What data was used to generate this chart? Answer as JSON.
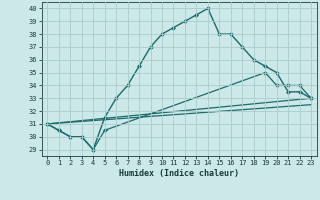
{
  "xlabel": "Humidex (Indice chaleur)",
  "background_color": "#cce8e8",
  "grid_color": "#aacccc",
  "line_color": "#1a6b6b",
  "xlim": [
    -0.5,
    23.5
  ],
  "ylim": [
    28.5,
    40.5
  ],
  "xticks": [
    0,
    1,
    2,
    3,
    4,
    5,
    6,
    7,
    8,
    9,
    10,
    11,
    12,
    13,
    14,
    15,
    16,
    17,
    18,
    19,
    20,
    21,
    22,
    23
  ],
  "yticks": [
    29,
    30,
    31,
    32,
    33,
    34,
    35,
    36,
    37,
    38,
    39,
    40
  ],
  "series": [
    {
      "x": [
        0,
        1,
        2,
        3,
        4,
        5,
        6,
        7,
        8,
        9,
        10,
        11,
        12,
        13,
        14,
        15,
        16,
        17,
        18,
        19,
        20,
        21,
        22,
        23
      ],
      "y": [
        31,
        30.5,
        30,
        30,
        29,
        31.5,
        33,
        34,
        35.5,
        37,
        38,
        38.5,
        39,
        39.5,
        40,
        38,
        38,
        37,
        36,
        35.5,
        35,
        33.5,
        33.5,
        33
      ],
      "marker": "D",
      "markersize": 2,
      "linewidth": 1.0,
      "has_marker": true
    },
    {
      "x": [
        0,
        23
      ],
      "y": [
        31,
        33
      ],
      "marker": null,
      "markersize": 0,
      "linewidth": 0.9,
      "has_marker": false
    },
    {
      "x": [
        0,
        23
      ],
      "y": [
        31,
        32.5
      ],
      "marker": null,
      "markersize": 0,
      "linewidth": 0.9,
      "has_marker": false
    },
    {
      "x": [
        0,
        1,
        2,
        3,
        4,
        5,
        19,
        20,
        21,
        22,
        23
      ],
      "y": [
        31,
        30.5,
        30,
        30,
        29,
        30.5,
        35,
        34,
        34,
        34,
        33
      ],
      "marker": "D",
      "markersize": 2,
      "linewidth": 0.9,
      "has_marker": true
    }
  ]
}
